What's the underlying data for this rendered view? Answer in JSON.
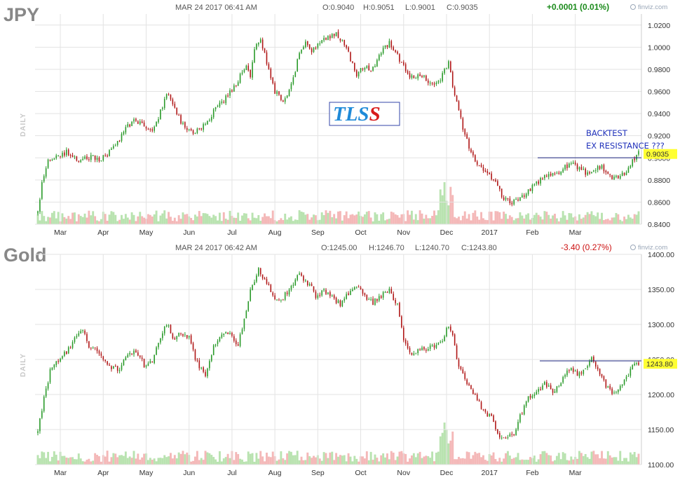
{
  "colors": {
    "up": "#2a9a2a",
    "down": "#b01818",
    "vol_up": "#b9e3b0",
    "vol_down": "#f4b8b8",
    "grid": "#e3e3e3",
    "level_line": "#1a237e",
    "last_bg": "#ffff33",
    "change_up": "#1a8a1a",
    "change_down": "#cc1111"
  },
  "watermark": {
    "text_blue": "TLS",
    "text_red": "S"
  },
  "chart_data": [
    {
      "type": "candlestick",
      "symbol": "JPY",
      "timestamp": "MAR 24 2017 06:41 AM",
      "open": "O:0.9040",
      "high": "H:0.9051",
      "low": "L:0.9001",
      "close": "C:0.9035",
      "change": "+0.0001 (0.01%)",
      "change_dir": "up",
      "source": "finviz.com",
      "ylabel": "DAILY",
      "ylim": [
        0.84,
        1.03
      ],
      "yticks": [
        "1.0200",
        "1.0000",
        "0.9800",
        "0.9600",
        "0.9400",
        "0.9200",
        "0.9000",
        "0.8800",
        "0.8600",
        "0.8400"
      ],
      "months": [
        "Mar",
        "Apr",
        "May",
        "Jun",
        "Jul",
        "Aug",
        "Sep",
        "Oct",
        "Nov",
        "Dec",
        "2017",
        "Feb",
        "Mar"
      ],
      "last_value": "0.9035",
      "last_numeric": 0.9035,
      "resistance_level": 0.9001,
      "annotation": [
        "BACKTEST",
        "EX RESISTANCE ???"
      ],
      "anchors": [
        [
          0,
          0.85
        ],
        [
          2,
          0.878
        ],
        [
          5,
          0.896
        ],
        [
          9,
          0.901
        ],
        [
          14,
          0.905
        ],
        [
          20,
          0.897
        ],
        [
          26,
          0.901
        ],
        [
          30,
          0.898
        ],
        [
          36,
          0.906
        ],
        [
          40,
          0.917
        ],
        [
          44,
          0.928
        ],
        [
          47,
          0.934
        ],
        [
          52,
          0.928
        ],
        [
          56,
          0.924
        ],
        [
          60,
          0.942
        ],
        [
          63,
          0.958
        ],
        [
          66,
          0.948
        ],
        [
          70,
          0.933
        ],
        [
          74,
          0.925
        ],
        [
          78,
          0.924
        ],
        [
          82,
          0.93
        ],
        [
          86,
          0.942
        ],
        [
          90,
          0.95
        ],
        [
          94,
          0.96
        ],
        [
          98,
          0.97
        ],
        [
          102,
          0.985
        ],
        [
          104,
          0.975
        ],
        [
          106,
          0.998
        ],
        [
          109,
          1.008
        ],
        [
          112,
          0.985
        ],
        [
          116,
          0.96
        ],
        [
          120,
          0.95
        ],
        [
          124,
          0.965
        ],
        [
          128,
          0.995
        ],
        [
          131,
          1.005
        ],
        [
          134,
          0.997
        ],
        [
          138,
          1.005
        ],
        [
          142,
          1.01
        ],
        [
          146,
          1.012
        ],
        [
          150,
          1.003
        ],
        [
          153,
          0.99
        ],
        [
          156,
          0.975
        ],
        [
          160,
          0.983
        ],
        [
          164,
          0.98
        ],
        [
          168,
          0.995
        ],
        [
          172,
          1.005
        ],
        [
          175,
          0.995
        ],
        [
          179,
          0.983
        ],
        [
          182,
          0.975
        ],
        [
          186,
          0.973
        ],
        [
          190,
          0.972
        ],
        [
          193,
          0.965
        ],
        [
          196,
          0.968
        ],
        [
          199,
          0.978
        ],
        [
          201,
          0.985
        ],
        [
          204,
          0.955
        ],
        [
          208,
          0.928
        ],
        [
          212,
          0.905
        ],
        [
          216,
          0.893
        ],
        [
          220,
          0.886
        ],
        [
          224,
          0.88
        ],
        [
          228,
          0.862
        ],
        [
          232,
          0.86
        ],
        [
          236,
          0.862
        ],
        [
          240,
          0.87
        ],
        [
          244,
          0.877
        ],
        [
          248,
          0.883
        ],
        [
          252,
          0.887
        ],
        [
          256,
          0.888
        ],
        [
          260,
          0.895
        ],
        [
          264,
          0.892
        ],
        [
          268,
          0.886
        ],
        [
          272,
          0.89
        ],
        [
          276,
          0.893
        ],
        [
          279,
          0.884
        ],
        [
          282,
          0.881
        ],
        [
          286,
          0.884
        ],
        [
          289,
          0.892
        ],
        [
          292,
          0.9
        ],
        [
          294,
          0.9035
        ]
      ]
    },
    {
      "type": "candlestick",
      "symbol": "Gold",
      "timestamp": "MAR 24 2017 06:42 AM",
      "open": "O:1245.00",
      "high": "H:1246.70",
      "low": "L:1240.70",
      "close": "C:1243.80",
      "change": "-3.40 (0.27%)",
      "change_dir": "down",
      "source": "finviz.com",
      "ylabel": "DAILY",
      "ylim": [
        1100,
        1400
      ],
      "yticks": [
        "1400.00",
        "1350.00",
        "1300.00",
        "1250.00",
        "1200.00",
        "1150.00",
        "1100.00"
      ],
      "months": [
        "Mar",
        "Apr",
        "May",
        "Jun",
        "Jul",
        "Aug",
        "Sep",
        "Oct",
        "Nov",
        "Dec",
        "2017",
        "Feb",
        "Mar"
      ],
      "last_value": "1243.80",
      "last_numeric": 1243.8,
      "resistance_level": 1248,
      "anchors": [
        [
          0,
          1145
        ],
        [
          3,
          1198
        ],
        [
          6,
          1232
        ],
        [
          10,
          1248
        ],
        [
          14,
          1262
        ],
        [
          18,
          1278
        ],
        [
          22,
          1290
        ],
        [
          25,
          1270
        ],
        [
          28,
          1265
        ],
        [
          32,
          1248
        ],
        [
          36,
          1238
        ],
        [
          40,
          1237
        ],
        [
          44,
          1255
        ],
        [
          48,
          1262
        ],
        [
          52,
          1243
        ],
        [
          56,
          1245
        ],
        [
          60,
          1282
        ],
        [
          63,
          1302
        ],
        [
          66,
          1280
        ],
        [
          70,
          1287
        ],
        [
          74,
          1280
        ],
        [
          78,
          1245
        ],
        [
          82,
          1228
        ],
        [
          86,
          1270
        ],
        [
          90,
          1282
        ],
        [
          94,
          1290
        ],
        [
          98,
          1270
        ],
        [
          102,
          1322
        ],
        [
          104,
          1346
        ],
        [
          108,
          1380
        ],
        [
          112,
          1358
        ],
        [
          116,
          1338
        ],
        [
          120,
          1337
        ],
        [
          124,
          1357
        ],
        [
          128,
          1370
        ],
        [
          132,
          1360
        ],
        [
          136,
          1342
        ],
        [
          140,
          1348
        ],
        [
          144,
          1339
        ],
        [
          148,
          1330
        ],
        [
          152,
          1345
        ],
        [
          156,
          1355
        ],
        [
          160,
          1338
        ],
        [
          164,
          1331
        ],
        [
          168,
          1342
        ],
        [
          172,
          1350
        ],
        [
          176,
          1327
        ],
        [
          179,
          1275
        ],
        [
          182,
          1258
        ],
        [
          186,
          1262
        ],
        [
          190,
          1266
        ],
        [
          194,
          1270
        ],
        [
          198,
          1278
        ],
        [
          201,
          1300
        ],
        [
          203,
          1283
        ],
        [
          206,
          1240
        ],
        [
          210,
          1215
        ],
        [
          214,
          1198
        ],
        [
          218,
          1175
        ],
        [
          222,
          1167
        ],
        [
          226,
          1142
        ],
        [
          229,
          1135
        ],
        [
          233,
          1145
        ],
        [
          237,
          1175
        ],
        [
          240,
          1195
        ],
        [
          244,
          1205
        ],
        [
          248,
          1215
        ],
        [
          252,
          1205
        ],
        [
          256,
          1218
        ],
        [
          260,
          1235
        ],
        [
          264,
          1230
        ],
        [
          268,
          1238
        ],
        [
          271,
          1250
        ],
        [
          274,
          1238
        ],
        [
          278,
          1212
        ],
        [
          282,
          1200
        ],
        [
          285,
          1210
        ],
        [
          288,
          1225
        ],
        [
          292,
          1245
        ],
        [
          294,
          1244
        ]
      ]
    }
  ]
}
